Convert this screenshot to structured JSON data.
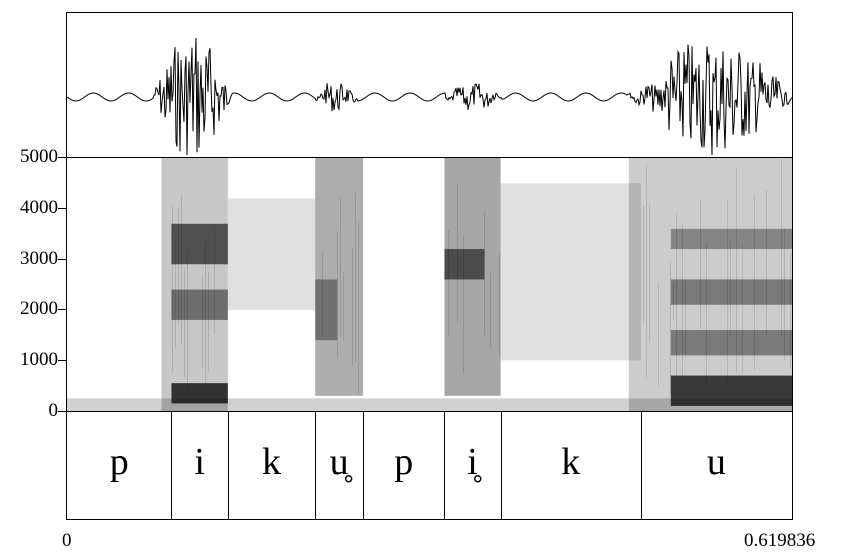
{
  "spectrogram": {
    "y_ticks": [
      {
        "label": "5000",
        "value": 5000
      },
      {
        "label": "4000",
        "value": 4000
      },
      {
        "label": "3000",
        "value": 3000
      },
      {
        "label": "2000",
        "value": 2000
      },
      {
        "label": "1000",
        "value": 1000
      },
      {
        "label": "0",
        "value": 0
      }
    ],
    "y_range": [
      0,
      5000
    ],
    "colors": {
      "ink": "#000000",
      "background": "#ffffff"
    }
  },
  "textgrid": {
    "segments": [
      {
        "label": "p",
        "start": 0.0,
        "end": 0.0893,
        "diacritic": ""
      },
      {
        "label": "i",
        "start": 0.0893,
        "end": 0.1375,
        "diacritic": ""
      },
      {
        "label": "k",
        "start": 0.1375,
        "end": 0.2122,
        "diacritic": ""
      },
      {
        "label": "u̥",
        "start": 0.2122,
        "end": 0.2531,
        "diacritic": "○"
      },
      {
        "label": "p",
        "start": 0.2531,
        "end": 0.3227,
        "diacritic": ""
      },
      {
        "label": "i̥",
        "start": 0.3227,
        "end": 0.3707,
        "diacritic": "○"
      },
      {
        "label": "k",
        "start": 0.3707,
        "end": 0.4906,
        "diacritic": ""
      },
      {
        "label": "u",
        "start": 0.4906,
        "end": 0.619836,
        "diacritic": ""
      }
    ]
  },
  "time_axis": {
    "start_label": "0",
    "end_label": "0.619836",
    "range": [
      0,
      0.619836
    ]
  }
}
